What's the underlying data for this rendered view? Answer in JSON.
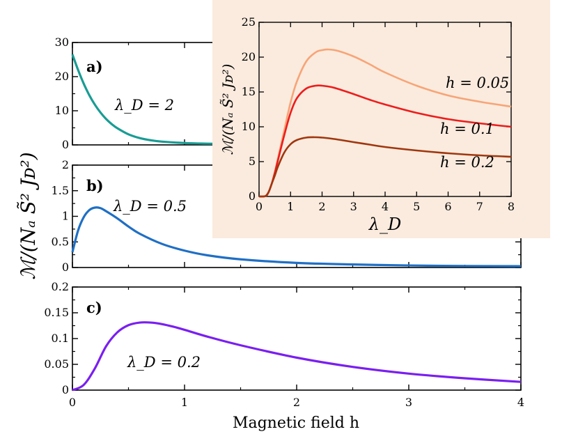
{
  "figure": {
    "xlabel": "Magnetic field  h",
    "ylabel": "ℳ/(Nₐ S̃² Jᴅ²)"
  },
  "chart_data": [
    {
      "type": "line",
      "panel_label": "a)",
      "annotation": "λ_D = 2",
      "color": "#199c94",
      "xlim": [
        0,
        4
      ],
      "ylim": [
        0,
        30
      ],
      "yticks": [
        0,
        10,
        20,
        30
      ],
      "xticks": [
        0,
        1,
        2,
        3,
        4
      ],
      "x": [
        0,
        0.05,
        0.1,
        0.15,
        0.2,
        0.25,
        0.3,
        0.35,
        0.4,
        0.5,
        0.6,
        0.7,
        0.8,
        1.0,
        1.2,
        1.4,
        1.6,
        1.8,
        2.0,
        2.5,
        3.0,
        3.5,
        4.0
      ],
      "y": [
        26.5,
        22.0,
        18.0,
        14.6,
        11.8,
        9.5,
        7.6,
        6.1,
        4.9,
        3.1,
        2.0,
        1.35,
        0.95,
        0.55,
        0.37,
        0.27,
        0.2,
        0.16,
        0.13,
        0.08,
        0.06,
        0.05,
        0.04
      ]
    },
    {
      "type": "line",
      "panel_label": "b)",
      "annotation": "λ_D = 0.5",
      "color": "#1f6fc5",
      "xlim": [
        0,
        4
      ],
      "ylim": [
        0,
        2
      ],
      "yticks": [
        0,
        0.5,
        1,
        1.5,
        2
      ],
      "xticks": [
        0,
        1,
        2,
        3,
        4
      ],
      "x": [
        0,
        0.05,
        0.1,
        0.15,
        0.2,
        0.25,
        0.3,
        0.4,
        0.5,
        0.6,
        0.8,
        1.0,
        1.2,
        1.5,
        2.0,
        2.5,
        3.0,
        3.5,
        4.0
      ],
      "y": [
        0.3,
        0.72,
        0.98,
        1.12,
        1.17,
        1.16,
        1.1,
        0.96,
        0.8,
        0.66,
        0.46,
        0.33,
        0.24,
        0.16,
        0.09,
        0.06,
        0.04,
        0.03,
        0.025
      ]
    },
    {
      "type": "line",
      "panel_label": "c)",
      "annotation": "λ_D = 0.2",
      "color": "#7a1ff0",
      "xlim": [
        0,
        4
      ],
      "ylim": [
        0,
        0.2
      ],
      "yticks": [
        0,
        0.05,
        0.1,
        0.15,
        0.2
      ],
      "xticks": [
        0,
        1,
        2,
        3,
        4
      ],
      "x": [
        0,
        0.1,
        0.2,
        0.3,
        0.4,
        0.5,
        0.6,
        0.7,
        0.8,
        0.9,
        1.0,
        1.2,
        1.5,
        2.0,
        2.5,
        3.0,
        3.5,
        4.0
      ],
      "y": [
        0,
        0.01,
        0.042,
        0.085,
        0.112,
        0.126,
        0.131,
        0.131,
        0.128,
        0.123,
        0.117,
        0.104,
        0.087,
        0.063,
        0.045,
        0.032,
        0.023,
        0.016
      ]
    },
    {
      "type": "line",
      "panel_label": "inset",
      "xlabel": "λ_D",
      "ylabel": "ℳ/(Nₐ S̃² Jᴅ²)",
      "background": "#faebde",
      "xlim": [
        0,
        8
      ],
      "ylim": [
        0,
        25
      ],
      "xticks": [
        0,
        1,
        2,
        3,
        4,
        5,
        6,
        7,
        8
      ],
      "yticks": [
        0,
        5,
        10,
        15,
        20,
        25
      ],
      "series": [
        {
          "name": "h = 0.05",
          "color": "#f8a477",
          "x": [
            0,
            0.2,
            0.3,
            0.4,
            0.5,
            0.6,
            0.8,
            1.0,
            1.2,
            1.5,
            1.8,
            2.0,
            2.2,
            2.5,
            3.0,
            3.5,
            4.0,
            5.0,
            6.0,
            7.0,
            8.0
          ],
          "y": [
            0,
            0.05,
            0.6,
            1.8,
            3.5,
            5.5,
            9.5,
            13.5,
            16.5,
            19.4,
            20.7,
            21.0,
            21.1,
            20.9,
            20.1,
            19.0,
            17.8,
            15.9,
            14.5,
            13.6,
            12.9
          ]
        },
        {
          "name": "h = 0.1",
          "color": "#ee1c1c",
          "x": [
            0,
            0.2,
            0.3,
            0.4,
            0.5,
            0.6,
            0.8,
            1.0,
            1.2,
            1.5,
            1.8,
            2.0,
            2.3,
            2.6,
            3.0,
            3.5,
            4.0,
            5.0,
            6.0,
            7.0,
            8.0
          ],
          "y": [
            0,
            0.05,
            0.6,
            1.8,
            3.4,
            5.2,
            8.8,
            12.0,
            14.1,
            15.5,
            15.9,
            15.9,
            15.7,
            15.3,
            14.7,
            13.9,
            13.2,
            12.0,
            11.1,
            10.5,
            10.0
          ]
        },
        {
          "name": "h = 0.2",
          "color": "#a0360e",
          "x": [
            0,
            0.2,
            0.3,
            0.4,
            0.5,
            0.6,
            0.8,
            1.0,
            1.2,
            1.5,
            1.8,
            2.0,
            2.3,
            2.6,
            3.0,
            3.5,
            4.0,
            5.0,
            6.0,
            7.0,
            8.0
          ],
          "y": [
            0,
            0.05,
            0.6,
            1.8,
            3.0,
            4.3,
            6.3,
            7.5,
            8.1,
            8.45,
            8.5,
            8.45,
            8.3,
            8.1,
            7.8,
            7.45,
            7.1,
            6.6,
            6.2,
            5.9,
            5.7
          ]
        }
      ]
    }
  ]
}
